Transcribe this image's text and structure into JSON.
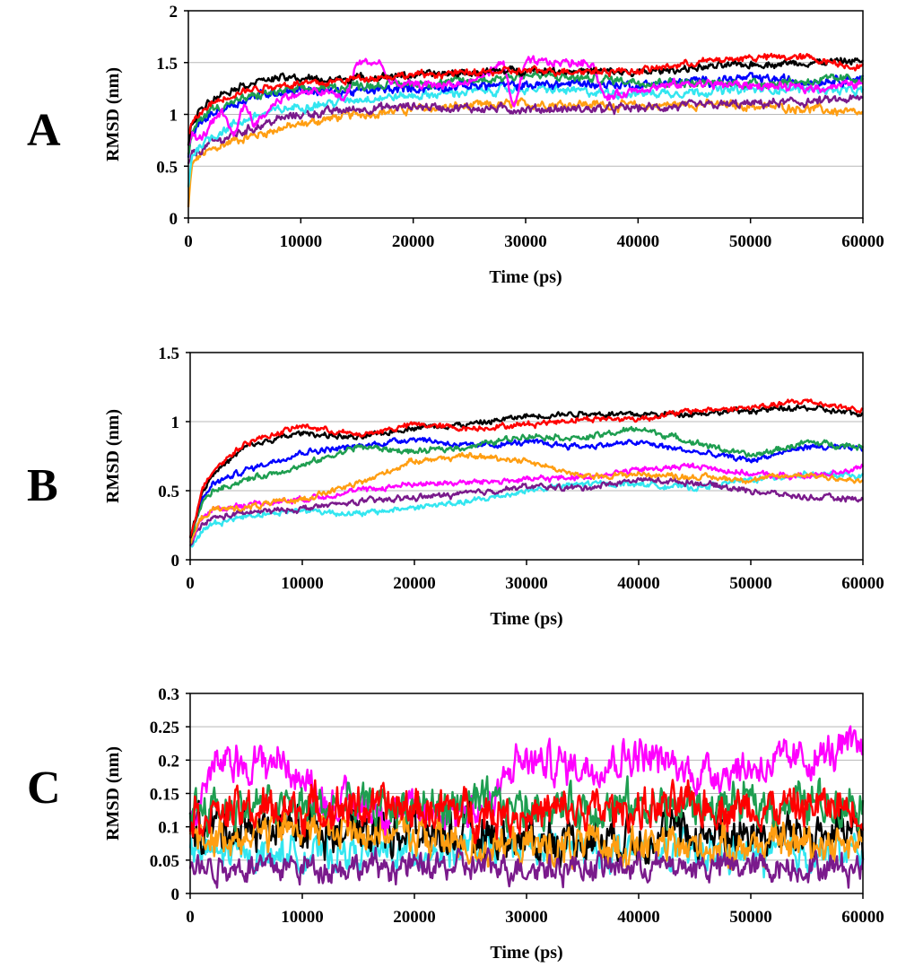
{
  "colors": {
    "black": "#000000",
    "red": "#ff0000",
    "green": "#1e9e50",
    "blue": "#0000ff",
    "cyan": "#33e6f0",
    "orange": "#ff9e12",
    "magenta": "#ff00ff",
    "purple": "#7a1a8c"
  },
  "chart_data": [
    {
      "panel_label": "A",
      "type": "line",
      "xlabel": "Time (ps)",
      "ylabel": "RMSD (nm)",
      "xlim": [
        0,
        60000
      ],
      "ylim": [
        0,
        2
      ],
      "xticks": [
        0,
        10000,
        20000,
        30000,
        40000,
        50000,
        60000
      ],
      "yticks": [
        0,
        0.5,
        1,
        1.5,
        2
      ],
      "ytick_labels": [
        "0",
        "0.5",
        "1",
        "1.5",
        "2"
      ],
      "grid": "horizontal",
      "legend": "none",
      "series": [
        {
          "color": "#ff9e12",
          "noise": 0.03,
          "x": [
            0,
            300,
            1000,
            2000,
            4000,
            6000,
            8000,
            10000,
            12000,
            15000,
            20000,
            25000,
            30000,
            35000,
            40000,
            45000,
            50000,
            55000,
            60000
          ],
          "values": [
            0.1,
            0.5,
            0.6,
            0.65,
            0.75,
            0.8,
            0.86,
            0.9,
            0.95,
            1.0,
            1.05,
            1.08,
            1.1,
            1.1,
            1.08,
            1.1,
            1.08,
            1.06,
            1.0
          ]
        },
        {
          "color": "#7a1a8c",
          "noise": 0.03,
          "x": [
            0,
            300,
            1000,
            2000,
            4000,
            6000,
            8000,
            10000,
            12000,
            15000,
            20000,
            25000,
            30000,
            35000,
            40000,
            45000,
            50000,
            55000,
            60000
          ],
          "values": [
            0.5,
            0.6,
            0.65,
            0.72,
            0.8,
            0.88,
            0.95,
            1.0,
            1.02,
            1.05,
            1.08,
            1.06,
            1.05,
            1.05,
            1.06,
            1.08,
            1.1,
            1.12,
            1.15
          ]
        },
        {
          "color": "#33e6f0",
          "noise": 0.03,
          "x": [
            0,
            300,
            1000,
            2000,
            4000,
            6000,
            8000,
            10000,
            12000,
            15000,
            20000,
            25000,
            30000,
            35000,
            40000,
            45000,
            50000,
            55000,
            60000
          ],
          "values": [
            0.3,
            0.6,
            0.7,
            0.78,
            0.9,
            0.98,
            1.04,
            1.08,
            1.1,
            1.15,
            1.18,
            1.22,
            1.25,
            1.22,
            1.2,
            1.22,
            1.24,
            1.25,
            1.22
          ]
        },
        {
          "color": "#0000ff",
          "noise": 0.03,
          "x": [
            0,
            300,
            1000,
            2000,
            4000,
            6000,
            8000,
            10000,
            12000,
            15000,
            20000,
            25000,
            30000,
            35000,
            40000,
            45000,
            50000,
            55000,
            60000
          ],
          "values": [
            0.6,
            0.8,
            0.9,
            1.0,
            1.1,
            1.18,
            1.22,
            1.24,
            1.22,
            1.22,
            1.25,
            1.28,
            1.28,
            1.3,
            1.28,
            1.32,
            1.35,
            1.32,
            1.35
          ]
        },
        {
          "color": "#1e9e50",
          "noise": 0.03,
          "x": [
            0,
            300,
            1000,
            2000,
            4000,
            6000,
            8000,
            10000,
            12000,
            15000,
            20000,
            25000,
            30000,
            35000,
            40000,
            45000,
            50000,
            55000,
            60000
          ],
          "values": [
            0.6,
            0.8,
            0.95,
            1.05,
            1.12,
            1.18,
            1.22,
            1.24,
            1.25,
            1.28,
            1.3,
            1.32,
            1.38,
            1.35,
            1.32,
            1.3,
            1.3,
            1.32,
            1.35
          ]
        },
        {
          "color": "#ff00ff",
          "noise": 0.03,
          "x": [
            0,
            300,
            1000,
            2000,
            3000,
            4000,
            5000,
            6000,
            8000,
            10000,
            12000,
            14000,
            15000,
            17000,
            18000,
            20000,
            25000,
            28000,
            29000,
            30000,
            33000,
            36000,
            37000,
            40000,
            45000,
            50000,
            55000,
            60000
          ],
          "values": [
            0.7,
            0.8,
            0.75,
            0.9,
            1.0,
            0.8,
            1.1,
            0.9,
            1.15,
            1.2,
            1.22,
            1.15,
            1.5,
            1.5,
            1.3,
            1.28,
            1.3,
            1.5,
            1.05,
            1.5,
            1.5,
            1.5,
            1.15,
            1.25,
            1.3,
            1.28,
            1.25,
            1.3
          ]
        },
        {
          "color": "#000000",
          "noise": 0.025,
          "x": [
            0,
            300,
            1000,
            2000,
            4000,
            6000,
            8000,
            10000,
            12000,
            15000,
            20000,
            25000,
            30000,
            35000,
            40000,
            45000,
            50000,
            55000,
            60000
          ],
          "values": [
            0.7,
            0.9,
            1.05,
            1.15,
            1.25,
            1.32,
            1.35,
            1.35,
            1.33,
            1.35,
            1.38,
            1.4,
            1.43,
            1.42,
            1.4,
            1.45,
            1.48,
            1.5,
            1.52
          ]
        },
        {
          "color": "#ff0000",
          "noise": 0.025,
          "x": [
            0,
            300,
            1000,
            2000,
            4000,
            6000,
            8000,
            10000,
            12000,
            15000,
            20000,
            25000,
            30000,
            35000,
            40000,
            45000,
            50000,
            55000,
            60000
          ],
          "values": [
            0.8,
            0.9,
            1.0,
            1.1,
            1.2,
            1.25,
            1.28,
            1.3,
            1.3,
            1.35,
            1.38,
            1.4,
            1.42,
            1.42,
            1.42,
            1.5,
            1.55,
            1.55,
            1.45
          ]
        }
      ]
    },
    {
      "panel_label": "B",
      "type": "line",
      "xlabel": "Time (ps)",
      "ylabel": "RMSD (nm)",
      "xlim": [
        0,
        60000
      ],
      "ylim": [
        0,
        1.5
      ],
      "xticks": [
        0,
        10000,
        20000,
        30000,
        40000,
        50000,
        60000
      ],
      "yticks": [
        0,
        0.5,
        1,
        1.5
      ],
      "ytick_labels": [
        "0",
        "0.5",
        "1",
        "1.5"
      ],
      "grid": "horizontal",
      "legend": "none",
      "series": [
        {
          "color": "#33e6f0",
          "noise": 0.015,
          "x": [
            0,
            1000,
            2000,
            5000,
            10000,
            15000,
            20000,
            25000,
            30000,
            35000,
            40000,
            45000,
            50000,
            55000,
            60000
          ],
          "values": [
            0.1,
            0.2,
            0.26,
            0.32,
            0.36,
            0.33,
            0.38,
            0.42,
            0.5,
            0.55,
            0.55,
            0.52,
            0.58,
            0.62,
            0.6
          ]
        },
        {
          "color": "#7a1a8c",
          "noise": 0.015,
          "x": [
            0,
            1000,
            2000,
            5000,
            10000,
            15000,
            20000,
            25000,
            30000,
            35000,
            40000,
            45000,
            50000,
            55000,
            60000
          ],
          "values": [
            0.1,
            0.25,
            0.3,
            0.34,
            0.37,
            0.42,
            0.45,
            0.48,
            0.53,
            0.52,
            0.58,
            0.56,
            0.5,
            0.45,
            0.44
          ]
        },
        {
          "color": "#ff00ff",
          "noise": 0.015,
          "x": [
            0,
            1000,
            2000,
            5000,
            10000,
            15000,
            20000,
            25000,
            30000,
            35000,
            40000,
            45000,
            50000,
            55000,
            60000
          ],
          "values": [
            0.12,
            0.3,
            0.36,
            0.4,
            0.44,
            0.5,
            0.55,
            0.56,
            0.58,
            0.6,
            0.65,
            0.68,
            0.62,
            0.6,
            0.67
          ]
        },
        {
          "color": "#ff9e12",
          "noise": 0.015,
          "x": [
            0,
            1000,
            2000,
            5000,
            10000,
            15000,
            20000,
            25000,
            30000,
            35000,
            40000,
            45000,
            50000,
            55000,
            60000
          ],
          "values": [
            0.12,
            0.3,
            0.36,
            0.38,
            0.44,
            0.55,
            0.72,
            0.75,
            0.72,
            0.6,
            0.62,
            0.6,
            0.58,
            0.62,
            0.56
          ]
        },
        {
          "color": "#0000ff",
          "noise": 0.015,
          "x": [
            0,
            1000,
            2000,
            5000,
            10000,
            15000,
            20000,
            25000,
            30000,
            35000,
            40000,
            45000,
            50000,
            55000,
            60000
          ],
          "values": [
            0.15,
            0.42,
            0.55,
            0.65,
            0.78,
            0.82,
            0.88,
            0.82,
            0.85,
            0.82,
            0.85,
            0.78,
            0.72,
            0.82,
            0.8
          ]
        },
        {
          "color": "#1e9e50",
          "noise": 0.015,
          "x": [
            0,
            1000,
            2000,
            5000,
            10000,
            15000,
            20000,
            25000,
            30000,
            35000,
            40000,
            45000,
            50000,
            55000,
            60000
          ],
          "values": [
            0.15,
            0.4,
            0.5,
            0.58,
            0.68,
            0.82,
            0.78,
            0.82,
            0.9,
            0.88,
            0.95,
            0.85,
            0.75,
            0.85,
            0.82
          ]
        },
        {
          "color": "#000000",
          "noise": 0.015,
          "x": [
            0,
            1000,
            2000,
            5000,
            10000,
            15000,
            20000,
            25000,
            30000,
            35000,
            40000,
            45000,
            50000,
            55000,
            60000
          ],
          "values": [
            0.15,
            0.48,
            0.62,
            0.82,
            0.92,
            0.88,
            0.96,
            0.98,
            1.04,
            1.06,
            1.05,
            1.06,
            1.08,
            1.1,
            1.05
          ]
        },
        {
          "color": "#ff0000",
          "noise": 0.015,
          "x": [
            0,
            1000,
            2000,
            5000,
            10000,
            15000,
            20000,
            25000,
            30000,
            35000,
            40000,
            45000,
            50000,
            55000,
            60000
          ],
          "values": [
            0.15,
            0.5,
            0.65,
            0.85,
            0.97,
            0.9,
            0.98,
            0.95,
            0.98,
            1.02,
            1.02,
            1.08,
            1.1,
            1.15,
            1.08
          ]
        }
      ]
    },
    {
      "panel_label": "C",
      "type": "line",
      "xlabel": "Time (ps)",
      "ylabel": "RMSD (nm)",
      "xlim": [
        0,
        60000
      ],
      "ylim": [
        0,
        0.3
      ],
      "xticks": [
        0,
        10000,
        20000,
        30000,
        40000,
        50000,
        60000
      ],
      "yticks": [
        0,
        0.05,
        0.1,
        0.15,
        0.2,
        0.25,
        0.3
      ],
      "ytick_labels": [
        "0",
        "0.05",
        "0.1",
        "0.15",
        "0.2",
        "0.25",
        "0.3"
      ],
      "grid": "horizontal",
      "legend": "none",
      "series": [
        {
          "color": "#33e6f0",
          "noise": 0.018,
          "x": [
            0,
            15000,
            30000,
            45000,
            60000
          ],
          "values": [
            0.06,
            0.06,
            0.07,
            0.06,
            0.06
          ]
        },
        {
          "color": "#000000",
          "noise": 0.025,
          "x": [
            0,
            15000,
            30000,
            45000,
            60000
          ],
          "values": [
            0.1,
            0.1,
            0.08,
            0.09,
            0.09
          ]
        },
        {
          "color": "#ff9e12",
          "noise": 0.02,
          "x": [
            0,
            10000,
            20000,
            25000,
            35000,
            45000,
            60000
          ],
          "values": [
            0.08,
            0.1,
            0.09,
            0.07,
            0.07,
            0.07,
            0.08
          ]
        },
        {
          "color": "#ff00ff",
          "noise": 0.02,
          "x": [
            0,
            2000,
            8000,
            12000,
            20000,
            27000,
            29000,
            35000,
            40000,
            45000,
            55000,
            60000
          ],
          "values": [
            0.1,
            0.19,
            0.2,
            0.14,
            0.12,
            0.13,
            0.2,
            0.19,
            0.21,
            0.18,
            0.2,
            0.22
          ]
        },
        {
          "color": "#1e9e50",
          "noise": 0.022,
          "x": [
            0,
            15000,
            30000,
            45000,
            60000
          ],
          "values": [
            0.13,
            0.13,
            0.13,
            0.13,
            0.14
          ]
        },
        {
          "color": "#ff0000",
          "noise": 0.022,
          "x": [
            0,
            15000,
            30000,
            45000,
            60000
          ],
          "values": [
            0.12,
            0.13,
            0.12,
            0.13,
            0.13
          ]
        },
        {
          "color": "#7a1a8c",
          "noise": 0.015,
          "x": [
            0,
            15000,
            30000,
            45000,
            60000
          ],
          "values": [
            0.04,
            0.04,
            0.04,
            0.04,
            0.04
          ]
        }
      ]
    }
  ]
}
